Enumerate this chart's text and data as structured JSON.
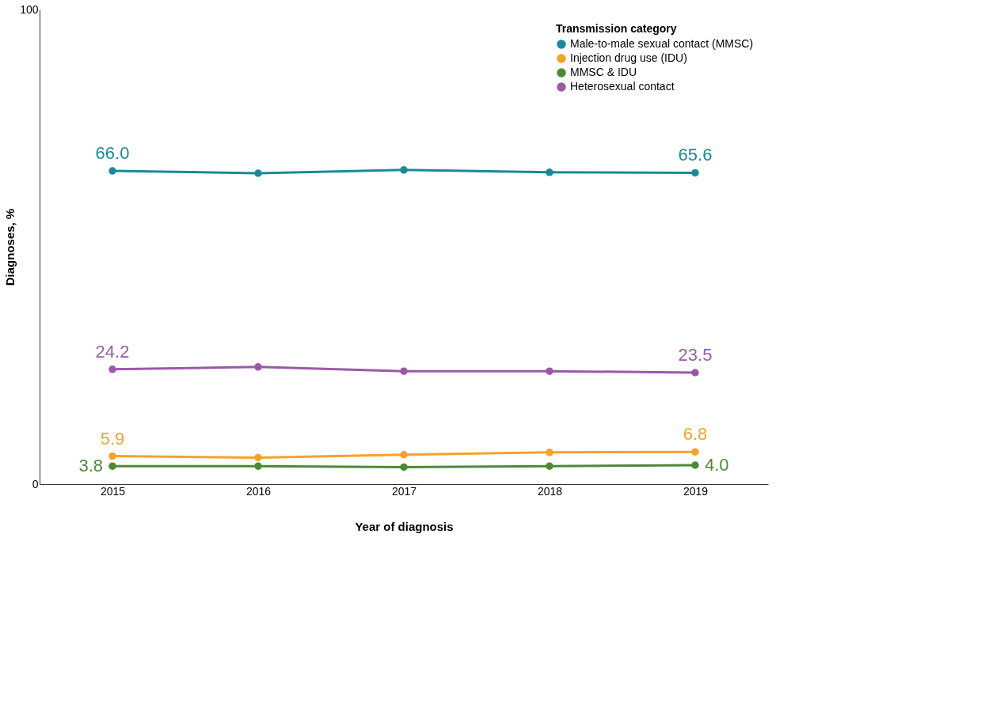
{
  "chart_data": {
    "type": "line",
    "xlabel": "Year of diagnosis",
    "ylabel": "Diagnoses, %",
    "legend_title": "Transmission category",
    "categories": [
      "2015",
      "2016",
      "2017",
      "2018",
      "2019"
    ],
    "series": [
      {
        "name": "Male-to-male sexual contact (MMSC)",
        "color": "#1a8a96",
        "values": [
          66.0,
          65.5,
          66.2,
          65.7,
          65.6
        ],
        "value_labels": [
          "66.0",
          null,
          null,
          null,
          "65.6"
        ]
      },
      {
        "name": "Injection drug use (IDU)",
        "color": "#f5a327",
        "values": [
          5.9,
          5.6,
          6.2,
          6.7,
          6.8
        ],
        "value_labels": [
          "5.9",
          null,
          null,
          null,
          "6.8"
        ]
      },
      {
        "name": "MMSC & IDU",
        "color": "#4d8a35",
        "values": [
          3.8,
          3.8,
          3.6,
          3.8,
          4.0
        ],
        "value_labels": [
          "3.8",
          null,
          null,
          null,
          "4.0"
        ]
      },
      {
        "name": "Heterosexual contact",
        "color": "#9b59a8",
        "values": [
          24.2,
          24.7,
          23.8,
          23.8,
          23.5
        ],
        "value_labels": [
          "24.2",
          null,
          null,
          null,
          "23.5"
        ]
      }
    ],
    "ylim": [
      0,
      100
    ],
    "yticks": [
      0,
      100
    ],
    "grid": false,
    "legend": "top right",
    "marker": "circle",
    "line_style": "solid"
  }
}
